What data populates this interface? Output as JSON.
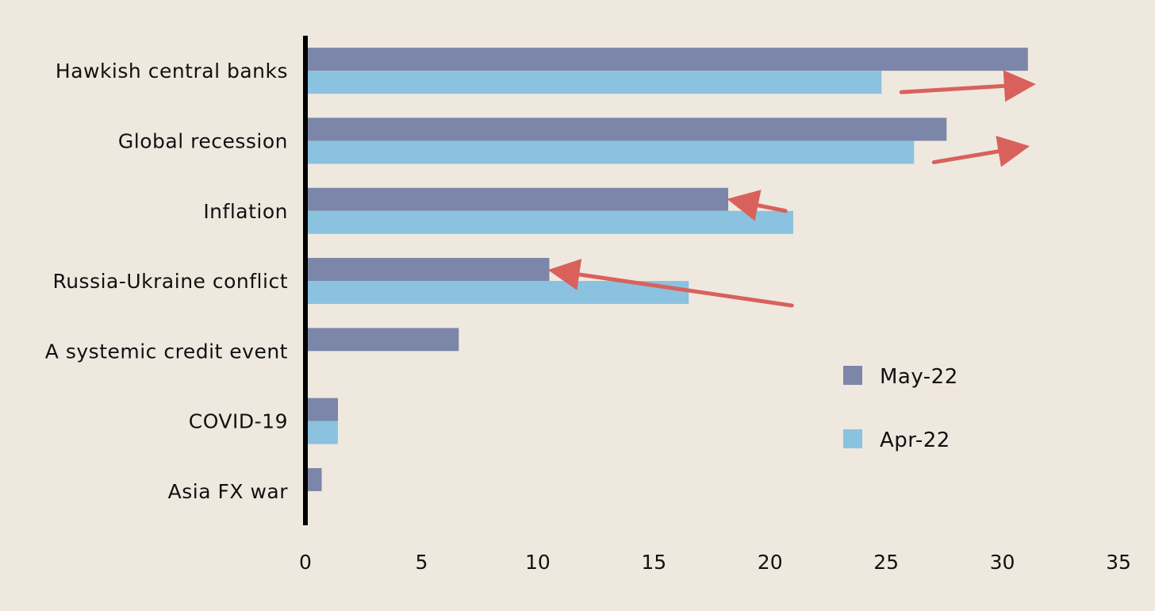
{
  "chart_data": {
    "type": "bar",
    "orientation": "horizontal",
    "categories": [
      "Hawkish central banks",
      "Global recession",
      "Inflation",
      "Russia-Ukraine conflict",
      "A systemic credit event",
      "COVID-19",
      "Asia FX war"
    ],
    "series": [
      {
        "name": "May-22",
        "values": [
          31.1,
          27.6,
          18.2,
          10.5,
          6.6,
          1.4,
          0.7
        ]
      },
      {
        "name": "Apr-22",
        "values": [
          24.8,
          26.2,
          21.0,
          16.5,
          0,
          1.4,
          0
        ]
      }
    ],
    "xlim": [
      0,
      35
    ],
    "xticks": [
      0,
      5,
      10,
      15,
      20,
      25,
      30,
      35
    ],
    "grid": false,
    "legend_position": "right",
    "colors": {
      "May-22": "#7b86a8",
      "Apr-22": "#8bc2df",
      "arrow": "#d9615c",
      "axis": "#000000",
      "background": "#efe8df"
    },
    "annotations": [
      {
        "type": "arrow",
        "category": "Hawkish central banks",
        "direction": "right"
      },
      {
        "type": "arrow",
        "category": "Global recession",
        "direction": "right"
      },
      {
        "type": "arrow",
        "category": "Inflation",
        "direction": "left"
      },
      {
        "type": "arrow",
        "category": "Russia-Ukraine conflict",
        "direction": "left"
      }
    ]
  }
}
